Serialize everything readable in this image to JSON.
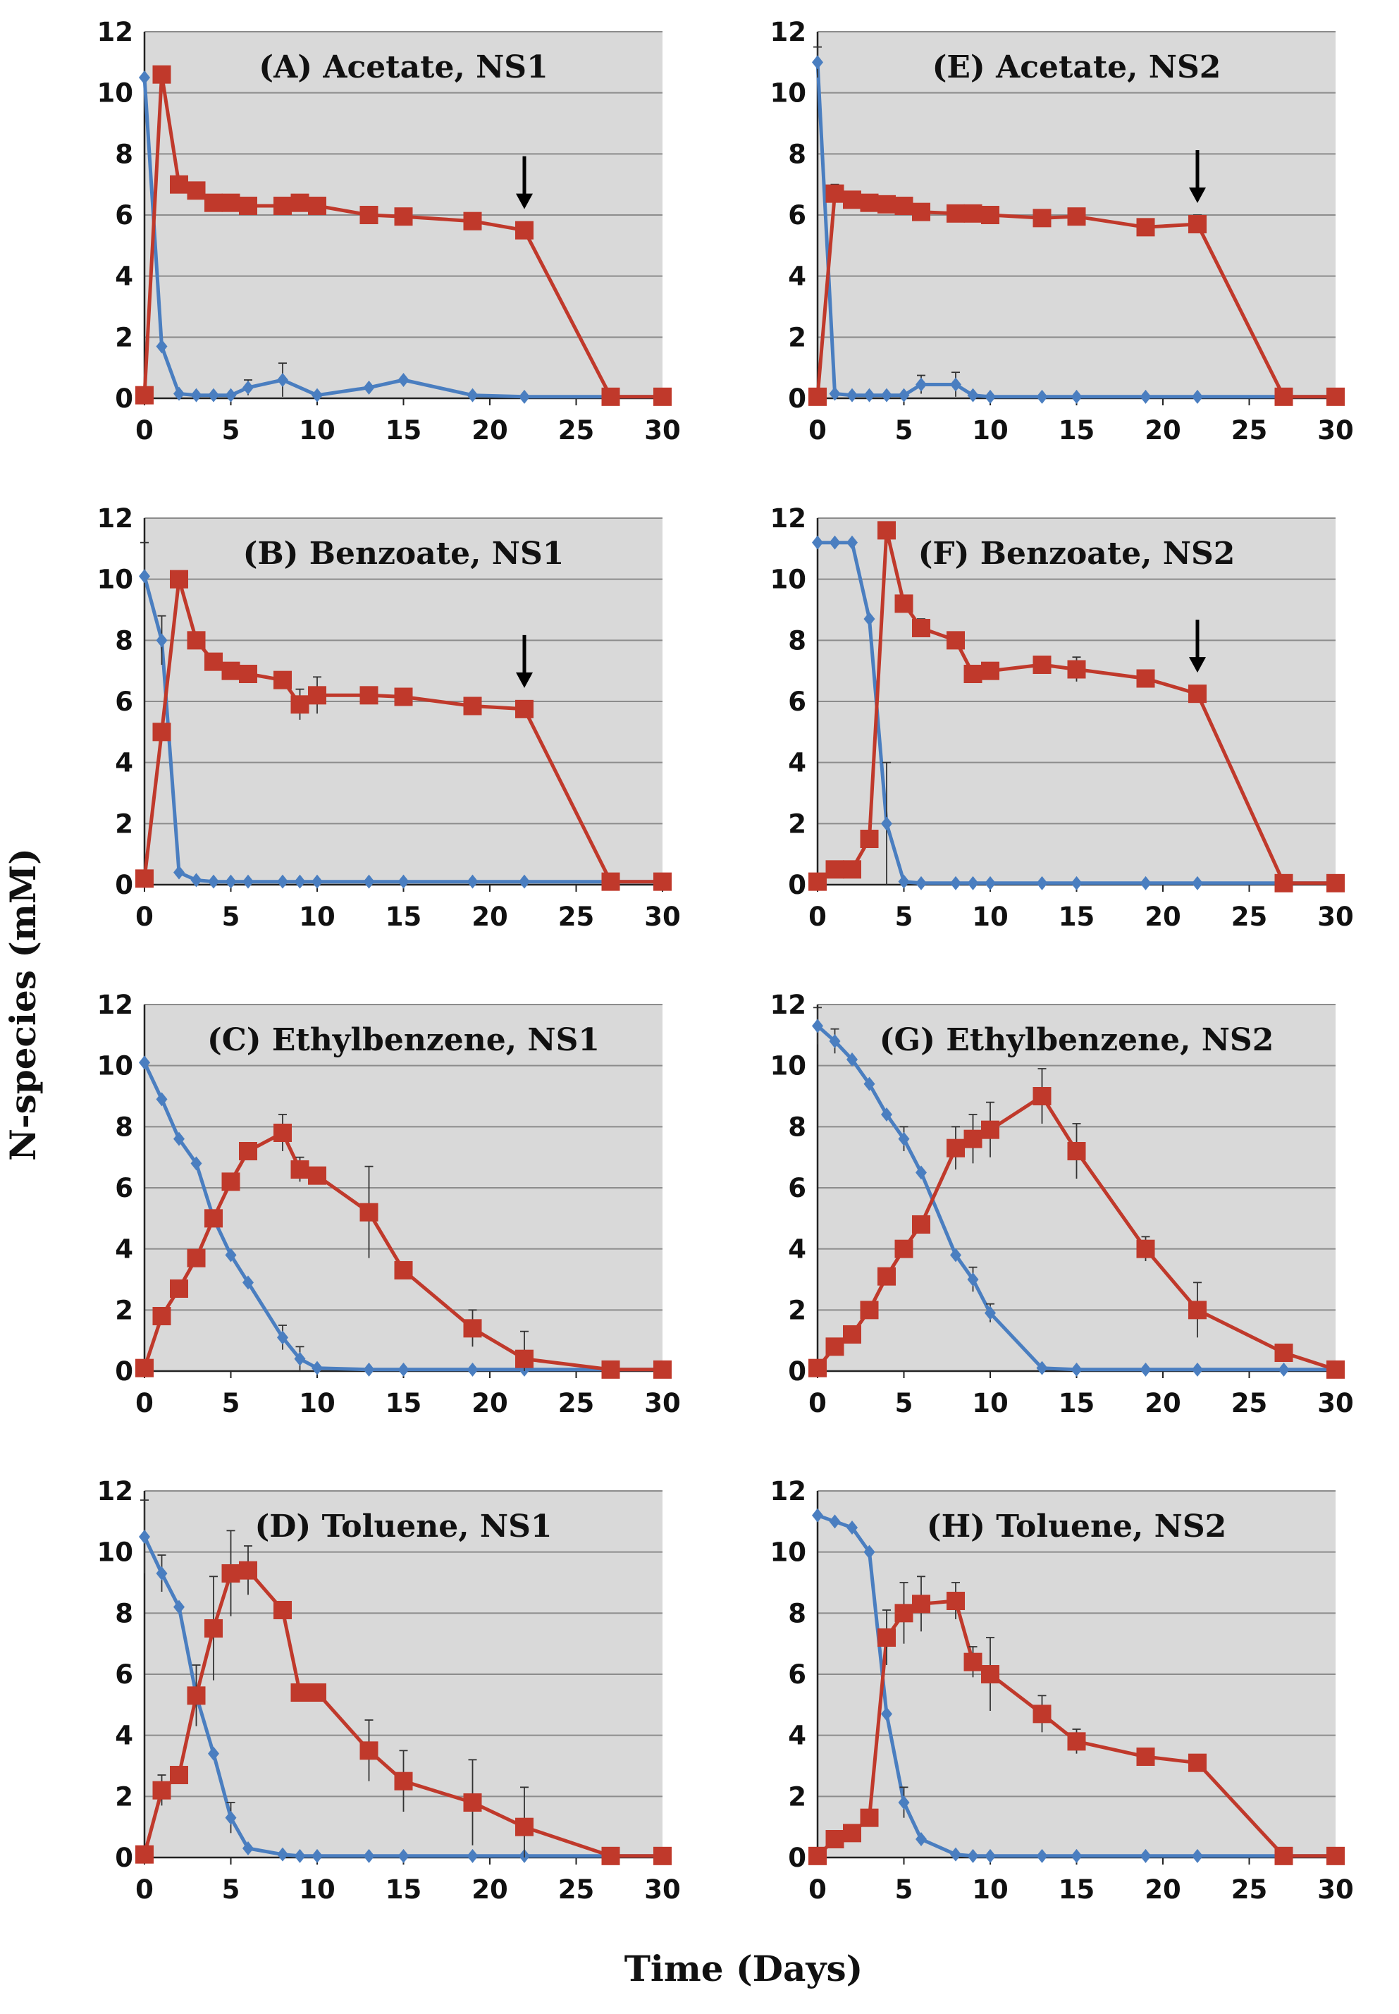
{
  "figure": {
    "ylabel": "N-species (mM)",
    "xlabel": "Time (Days)"
  },
  "colors": {
    "nitrate": "#4a7ec0",
    "nitrite": "#c0392b",
    "plot_bg": "#d9d9d9",
    "grid": "#8c8c8c"
  },
  "chart_data": [
    {
      "id": "A",
      "type": "line",
      "title": "(A) Acetate, NS1",
      "xlabel": "Time (Days)",
      "ylabel": "N-species (mM)",
      "xlim": [
        0,
        30
      ],
      "ylim": [
        0,
        12
      ],
      "xticks": [
        0,
        5,
        10,
        15,
        20,
        25,
        30
      ],
      "yticks": [
        0,
        2,
        4,
        6,
        8,
        10,
        12
      ],
      "arrow_at": 22,
      "grid": true,
      "series": [
        {
          "name": "blue",
          "color": "#4a7ec0",
          "marker": "diamond",
          "x": [
            0,
            1,
            2,
            3,
            4,
            5,
            6,
            8,
            10,
            13,
            15,
            19,
            22,
            27,
            30
          ],
          "y": [
            10.5,
            1.7,
            0.15,
            0.1,
            0.1,
            0.1,
            0.35,
            0.6,
            0.1,
            0.35,
            0.6,
            0.1,
            0.05,
            0.05,
            0.05
          ],
          "err": [
            0,
            0,
            0,
            0,
            0,
            0,
            0.25,
            0.55,
            0,
            0,
            0,
            0,
            0,
            0,
            0
          ]
        },
        {
          "name": "red",
          "color": "#c0392b",
          "marker": "square",
          "x": [
            0,
            1,
            2,
            3,
            4,
            5,
            6,
            8,
            9,
            10,
            13,
            15,
            19,
            22,
            27,
            30
          ],
          "y": [
            0.1,
            10.6,
            7.0,
            6.8,
            6.4,
            6.4,
            6.3,
            6.3,
            6.4,
            6.3,
            6.0,
            5.95,
            5.8,
            5.5,
            0.05,
            0.05
          ],
          "err": [
            0,
            0,
            0,
            0,
            0.15,
            0,
            0,
            0,
            0,
            0,
            0,
            0,
            0,
            0,
            0,
            0
          ]
        }
      ]
    },
    {
      "id": "E",
      "type": "line",
      "title": "(E) Acetate, NS2",
      "xlabel": "Time (Days)",
      "ylabel": "N-species (mM)",
      "xlim": [
        0,
        30
      ],
      "ylim": [
        0,
        12
      ],
      "xticks": [
        0,
        5,
        10,
        15,
        20,
        25,
        30
      ],
      "yticks": [
        0,
        2,
        4,
        6,
        8,
        10,
        12
      ],
      "arrow_at": 22,
      "grid": true,
      "series": [
        {
          "name": "blue",
          "color": "#4a7ec0",
          "marker": "diamond",
          "x": [
            0,
            1,
            2,
            3,
            4,
            5,
            6,
            8,
            9,
            10,
            13,
            15,
            19,
            22,
            27,
            30
          ],
          "y": [
            11.0,
            0.15,
            0.1,
            0.1,
            0.1,
            0.1,
            0.45,
            0.45,
            0.1,
            0.05,
            0.05,
            0.05,
            0.05,
            0.05,
            0.05,
            0.05
          ],
          "err": [
            0.5,
            0,
            0,
            0,
            0,
            0,
            0.3,
            0.4,
            0,
            0,
            0,
            0,
            0,
            0,
            0,
            0
          ]
        },
        {
          "name": "red",
          "color": "#c0392b",
          "marker": "square",
          "x": [
            0,
            1,
            2,
            3,
            4,
            5,
            6,
            8,
            9,
            10,
            13,
            15,
            19,
            22,
            27,
            30
          ],
          "y": [
            0.05,
            6.7,
            6.5,
            6.4,
            6.35,
            6.3,
            6.1,
            6.05,
            6.05,
            6.0,
            5.9,
            5.95,
            5.6,
            5.7,
            0.05,
            0.05
          ],
          "err": [
            0,
            0.3,
            0,
            0,
            0,
            0,
            0,
            0,
            0,
            0,
            0,
            0,
            0,
            0.3,
            0,
            0
          ]
        }
      ]
    },
    {
      "id": "B",
      "type": "line",
      "title": "(B) Benzoate, NS1",
      "xlabel": "Time (Days)",
      "ylabel": "N-species (mM)",
      "xlim": [
        0,
        30
      ],
      "ylim": [
        0,
        12
      ],
      "xticks": [
        0,
        5,
        10,
        15,
        20,
        25,
        30
      ],
      "yticks": [
        0,
        2,
        4,
        6,
        8,
        10,
        12
      ],
      "arrow_at": 22,
      "grid": true,
      "series": [
        {
          "name": "blue",
          "color": "#4a7ec0",
          "marker": "diamond",
          "x": [
            0,
            1,
            2,
            3,
            4,
            5,
            6,
            8,
            9,
            10,
            13,
            15,
            19,
            22,
            27,
            30
          ],
          "y": [
            10.1,
            8.0,
            0.4,
            0.15,
            0.1,
            0.1,
            0.1,
            0.1,
            0.1,
            0.1,
            0.1,
            0.1,
            0.1,
            0.1,
            0.1,
            0.1
          ],
          "err": [
            1.1,
            0.8,
            0,
            0,
            0,
            0,
            0,
            0,
            0,
            0,
            0,
            0,
            0,
            0,
            0,
            0
          ]
        },
        {
          "name": "red",
          "color": "#c0392b",
          "marker": "square",
          "x": [
            0,
            1,
            2,
            3,
            4,
            5,
            6,
            8,
            9,
            10,
            13,
            15,
            19,
            22,
            27,
            30
          ],
          "y": [
            0.2,
            5.0,
            10.0,
            8.0,
            7.3,
            7.0,
            6.9,
            6.7,
            5.9,
            6.2,
            6.2,
            6.15,
            5.85,
            5.75,
            0.1,
            0.1
          ],
          "err": [
            0,
            0,
            0,
            0,
            0,
            0,
            0,
            0,
            0.5,
            0.6,
            0,
            0,
            0,
            0,
            0,
            0
          ]
        }
      ]
    },
    {
      "id": "F",
      "type": "line",
      "title": "(F) Benzoate, NS2",
      "xlabel": "Time (Days)",
      "ylabel": "N-species (mM)",
      "xlim": [
        0,
        30
      ],
      "ylim": [
        0,
        12
      ],
      "xticks": [
        0,
        5,
        10,
        15,
        20,
        25,
        30
      ],
      "yticks": [
        0,
        2,
        4,
        6,
        8,
        10,
        12
      ],
      "arrow_at": 22,
      "grid": true,
      "series": [
        {
          "name": "blue",
          "color": "#4a7ec0",
          "marker": "diamond",
          "x": [
            0,
            1,
            2,
            3,
            4,
            5,
            6,
            8,
            9,
            10,
            13,
            15,
            19,
            22,
            27,
            30
          ],
          "y": [
            11.2,
            11.2,
            11.2,
            8.7,
            2.0,
            0.1,
            0.05,
            0.05,
            0.05,
            0.05,
            0.05,
            0.05,
            0.05,
            0.05,
            0.05,
            0.05
          ],
          "err": [
            0,
            0,
            0,
            0,
            2.0,
            0,
            0,
            0,
            0,
            0,
            0,
            0,
            0,
            0,
            0,
            0
          ]
        },
        {
          "name": "red",
          "color": "#c0392b",
          "marker": "square",
          "x": [
            0,
            1,
            2,
            3,
            4,
            5,
            6,
            8,
            9,
            10,
            13,
            15,
            19,
            22,
            27,
            30
          ],
          "y": [
            0.1,
            0.5,
            0.5,
            1.5,
            11.6,
            9.2,
            8.4,
            8.0,
            6.9,
            7.0,
            7.2,
            7.05,
            6.75,
            6.25,
            0.05,
            0.05
          ],
          "err": [
            0,
            0,
            0,
            0,
            0,
            0,
            0.3,
            0,
            0,
            0,
            0,
            0.4,
            0,
            0,
            0,
            0
          ]
        }
      ]
    },
    {
      "id": "C",
      "type": "line",
      "title": "(C) Ethylbenzene, NS1",
      "xlabel": "Time (Days)",
      "ylabel": "N-species (mM)",
      "xlim": [
        0,
        30
      ],
      "ylim": [
        0,
        12
      ],
      "xticks": [
        0,
        5,
        10,
        15,
        20,
        25,
        30
      ],
      "yticks": [
        0,
        2,
        4,
        6,
        8,
        10,
        12
      ],
      "grid": true,
      "series": [
        {
          "name": "blue",
          "color": "#4a7ec0",
          "marker": "diamond",
          "x": [
            0,
            1,
            2,
            3,
            4,
            5,
            6,
            8,
            9,
            10,
            13,
            15,
            19,
            22,
            27,
            30
          ],
          "y": [
            10.1,
            8.9,
            7.6,
            6.8,
            5.0,
            3.8,
            2.9,
            1.1,
            0.4,
            0.1,
            0.05,
            0.05,
            0.05,
            0.05,
            0.05,
            0.05
          ],
          "err": [
            0,
            0,
            0,
            0,
            0,
            0,
            0,
            0.4,
            0.4,
            0,
            0,
            0,
            0,
            0,
            0,
            0
          ]
        },
        {
          "name": "red",
          "color": "#c0392b",
          "marker": "square",
          "x": [
            0,
            1,
            2,
            3,
            4,
            5,
            6,
            8,
            9,
            10,
            13,
            15,
            19,
            22,
            27,
            30
          ],
          "y": [
            0.1,
            1.8,
            2.7,
            3.7,
            5.0,
            6.2,
            7.2,
            7.8,
            6.6,
            6.4,
            5.2,
            3.3,
            1.4,
            0.4,
            0.05,
            0.05
          ],
          "err": [
            0,
            0,
            0,
            0,
            0,
            0,
            0,
            0.6,
            0.4,
            0,
            1.5,
            0,
            0.6,
            0.9,
            0,
            0
          ]
        }
      ]
    },
    {
      "id": "G",
      "type": "line",
      "title": "(G) Ethylbenzene, NS2",
      "xlabel": "Time (Days)",
      "ylabel": "N-species (mM)",
      "xlim": [
        0,
        30
      ],
      "ylim": [
        0,
        12
      ],
      "xticks": [
        0,
        5,
        10,
        15,
        20,
        25,
        30
      ],
      "yticks": [
        0,
        2,
        4,
        6,
        8,
        10,
        12
      ],
      "grid": true,
      "series": [
        {
          "name": "blue",
          "color": "#4a7ec0",
          "marker": "diamond",
          "x": [
            0,
            1,
            2,
            3,
            4,
            5,
            6,
            8,
            9,
            10,
            13,
            15,
            19,
            22,
            27,
            30
          ],
          "y": [
            11.3,
            10.8,
            10.2,
            9.4,
            8.4,
            7.6,
            6.5,
            3.8,
            3.0,
            1.9,
            0.1,
            0.05,
            0.05,
            0.05,
            0.05,
            0.05
          ],
          "err": [
            0.6,
            0.4,
            0,
            0,
            0,
            0.4,
            0,
            0,
            0.4,
            0.3,
            0,
            0,
            0,
            0,
            0,
            0
          ]
        },
        {
          "name": "red",
          "color": "#c0392b",
          "marker": "square",
          "x": [
            0,
            1,
            2,
            3,
            4,
            5,
            6,
            8,
            9,
            10,
            13,
            15,
            19,
            22,
            27,
            30
          ],
          "y": [
            0.1,
            0.8,
            1.2,
            2.0,
            3.1,
            4.0,
            4.8,
            7.3,
            7.6,
            7.9,
            9.0,
            7.2,
            4.0,
            2.0,
            0.6,
            0.05
          ],
          "err": [
            0,
            0,
            0,
            0,
            0,
            0,
            0,
            0.7,
            0.8,
            0.9,
            0.9,
            0.9,
            0.4,
            0.9,
            0,
            0
          ]
        }
      ]
    },
    {
      "id": "D",
      "type": "line",
      "title": "(D) Toluene, NS1",
      "xlabel": "Time (Days)",
      "ylabel": "N-species (mM)",
      "xlim": [
        0,
        30
      ],
      "ylim": [
        0,
        12
      ],
      "xticks": [
        0,
        5,
        10,
        15,
        20,
        25,
        30
      ],
      "yticks": [
        0,
        2,
        4,
        6,
        8,
        10,
        12
      ],
      "grid": true,
      "series": [
        {
          "name": "blue",
          "color": "#4a7ec0",
          "marker": "diamond",
          "x": [
            0,
            1,
            2,
            3,
            4,
            5,
            6,
            8,
            9,
            10,
            13,
            15,
            19,
            22,
            27,
            30
          ],
          "y": [
            10.5,
            9.3,
            8.2,
            5.3,
            3.4,
            1.3,
            0.3,
            0.1,
            0.05,
            0.05,
            0.05,
            0.05,
            0.05,
            0.05,
            0.05,
            0.05
          ],
          "err": [
            1.2,
            0.6,
            0,
            0,
            0,
            0.5,
            0,
            0,
            0,
            0,
            0,
            0,
            0,
            0,
            0,
            0
          ]
        },
        {
          "name": "red",
          "color": "#c0392b",
          "marker": "square",
          "x": [
            0,
            1,
            2,
            3,
            4,
            5,
            6,
            8,
            9,
            10,
            13,
            15,
            19,
            22,
            27,
            30
          ],
          "y": [
            0.1,
            2.2,
            2.7,
            5.3,
            7.5,
            9.3,
            9.4,
            8.1,
            5.4,
            5.4,
            3.5,
            2.5,
            1.8,
            1.0,
            0.05,
            0.05
          ],
          "err": [
            0,
            0.5,
            0,
            1.0,
            1.7,
            1.4,
            0.8,
            0,
            0,
            0,
            1.0,
            1.0,
            1.4,
            1.3,
            0,
            0
          ]
        }
      ]
    },
    {
      "id": "H",
      "type": "line",
      "title": "(H) Toluene, NS2",
      "xlabel": "Time (Days)",
      "ylabel": "N-species (mM)",
      "xlim": [
        0,
        30
      ],
      "ylim": [
        0,
        12
      ],
      "xticks": [
        0,
        5,
        10,
        15,
        20,
        25,
        30
      ],
      "yticks": [
        0,
        2,
        4,
        6,
        8,
        10,
        12
      ],
      "grid": true,
      "series": [
        {
          "name": "blue",
          "color": "#4a7ec0",
          "marker": "diamond",
          "x": [
            0,
            1,
            2,
            3,
            4,
            5,
            6,
            8,
            9,
            10,
            13,
            15,
            19,
            22,
            27,
            30
          ],
          "y": [
            11.2,
            11.0,
            10.8,
            10.0,
            4.7,
            1.8,
            0.6,
            0.1,
            0.05,
            0.05,
            0.05,
            0.05,
            0.05,
            0.05,
            0.05,
            0.05
          ],
          "err": [
            0,
            0,
            0,
            0,
            0,
            0.5,
            0,
            0,
            0,
            0,
            0,
            0,
            0,
            0,
            0,
            0
          ]
        },
        {
          "name": "red",
          "color": "#c0392b",
          "marker": "square",
          "x": [
            0,
            1,
            2,
            3,
            4,
            5,
            6,
            8,
            9,
            10,
            13,
            15,
            19,
            22,
            27,
            30
          ],
          "y": [
            0.05,
            0.6,
            0.8,
            1.3,
            7.2,
            8.0,
            8.3,
            8.4,
            6.4,
            6.0,
            4.7,
            3.8,
            3.3,
            3.1,
            0.05,
            0.05
          ],
          "err": [
            0,
            0,
            0,
            0,
            0.9,
            1.0,
            0.9,
            0.6,
            0.5,
            1.2,
            0.6,
            0.4,
            0,
            0,
            0,
            0
          ]
        }
      ]
    }
  ]
}
